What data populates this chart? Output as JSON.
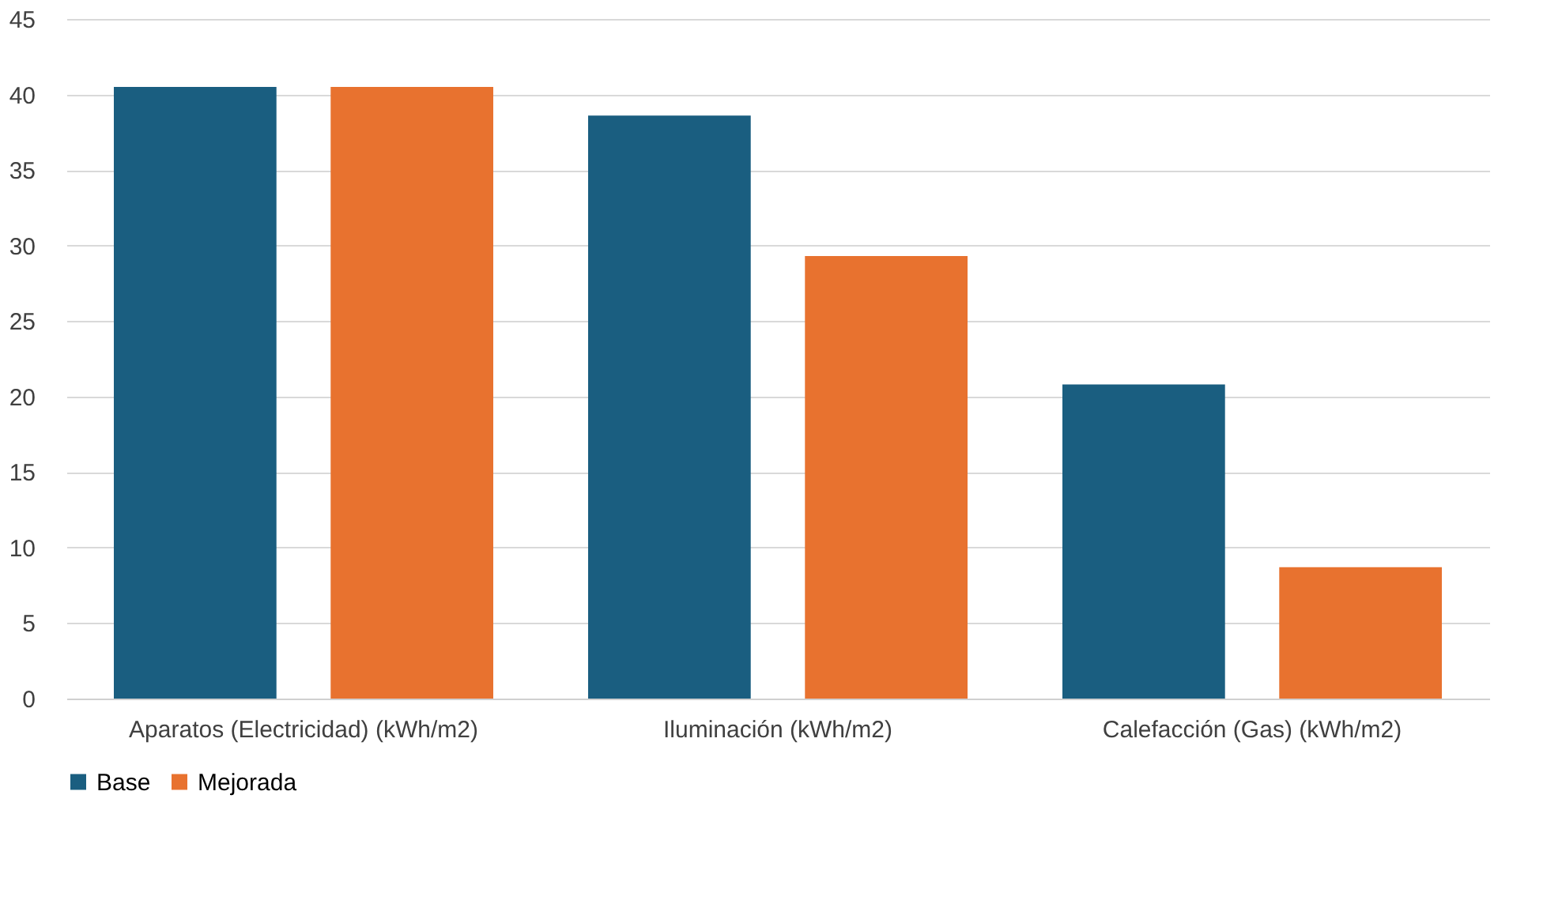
{
  "chart_data": {
    "type": "bar",
    "categories": [
      "Aparatos (Electricidad) (kWh/m2)",
      "Iluminación (kWh/m2)",
      "Calefacción (Gas) (kWh/m2)"
    ],
    "series": [
      {
        "name": "Base",
        "color": "#1a5e80",
        "values": [
          40.5,
          38.6,
          20.8
        ]
      },
      {
        "name": "Mejorada",
        "color": "#e8722f",
        "values": [
          40.5,
          29.3,
          8.7
        ]
      }
    ],
    "ylim": [
      0,
      45
    ],
    "yticks": [
      0,
      5,
      10,
      15,
      20,
      25,
      30,
      35,
      40,
      45
    ],
    "grid": "y",
    "legend": "bottom"
  }
}
